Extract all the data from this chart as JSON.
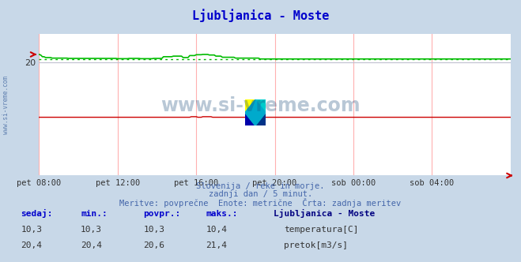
{
  "title": "Ljubljanica - Moste",
  "title_color": "#0000cc",
  "bg_color": "#c8d8e8",
  "plot_bg_color": "#ffffff",
  "grid_color_h": "#c0c0d0",
  "grid_color_v": "#ffb0b0",
  "xlabel_ticks": [
    "pet 08:00",
    "pet 12:00",
    "pet 16:00",
    "pet 20:00",
    "sob 00:00",
    "sob 04:00"
  ],
  "y_range": [
    0,
    25
  ],
  "n_points": 289,
  "watermark_text": "www.si-vreme.com",
  "watermark_color": "#1a4a7a",
  "watermark_alpha": 0.3,
  "subtitle1": "Slovenija / reke in morje.",
  "subtitle2": "zadnji dan / 5 minut.",
  "subtitle3": "Meritve: povprečne  Enote: metrične  Črta: zadnja meritev",
  "subtitle_color": "#4466aa",
  "legend_title": "Ljubljanica - Moste",
  "legend_title_color": "#000080",
  "legend_items": [
    {
      "label": "temperatura[C]",
      "color": "#cc0000"
    },
    {
      "label": "pretok[m3/s]",
      "color": "#00aa00"
    }
  ],
  "stats_headers": [
    "sedaj:",
    "min.:",
    "povpr.:",
    "maks.:"
  ],
  "stats_temp": [
    "10,3",
    "10,3",
    "10,3",
    "10,4"
  ],
  "stats_flow": [
    "20,4",
    "20,4",
    "20,6",
    "21,4"
  ],
  "temp_color": "#cc0000",
  "flow_color": "#00bb00",
  "flow_avg": 20.6,
  "temp_avg": 10.3
}
